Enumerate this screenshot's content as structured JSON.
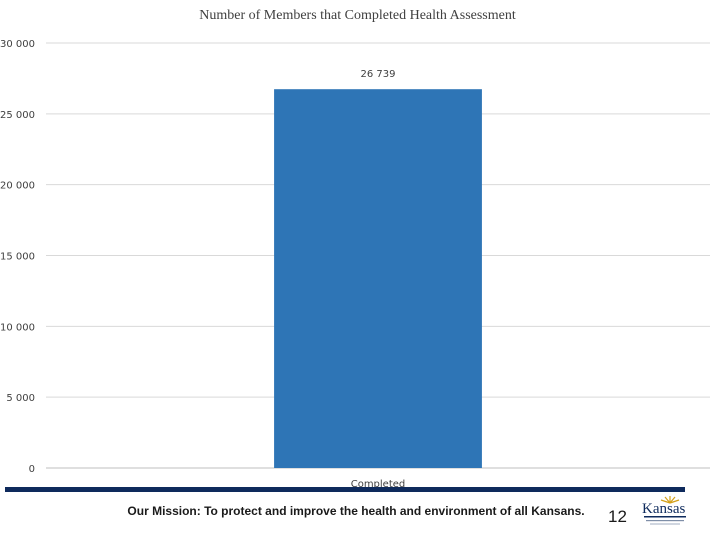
{
  "chart_data": {
    "type": "bar",
    "title": "Number of Members that Completed Health Assessment",
    "categories": [
      "Completed"
    ],
    "values": [
      26739
    ],
    "value_labels": [
      "26 739"
    ],
    "xlabel": "",
    "ylabel": "",
    "ylim": [
      0,
      30000
    ],
    "yticks": [
      0,
      5000,
      10000,
      15000,
      20000,
      25000,
      30000
    ],
    "ytick_labels": [
      "0",
      "5 000",
      "10 000",
      "15 000",
      "20 000",
      "25 000",
      "30 000"
    ],
    "grid": true,
    "legend": "none",
    "bar_color": "#2e75b6"
  },
  "footer": {
    "mission": "Our Mission: To protect and improve the health and environment of all Kansans.",
    "page_number": "12",
    "rule_color": "#0e2a5c"
  },
  "logo": {
    "text": "Kansas",
    "icon": "kdhe-logo-icon"
  }
}
